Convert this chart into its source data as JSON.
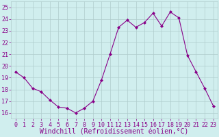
{
  "x": [
    0,
    1,
    2,
    3,
    4,
    5,
    6,
    7,
    8,
    9,
    10,
    11,
    12,
    13,
    14,
    15,
    16,
    17,
    18,
    19,
    20,
    21,
    22,
    23
  ],
  "y": [
    19.5,
    19.0,
    18.1,
    17.8,
    17.1,
    16.5,
    16.4,
    16.0,
    16.4,
    17.0,
    18.8,
    21.0,
    23.3,
    23.9,
    23.3,
    23.7,
    24.5,
    23.4,
    24.6,
    24.1,
    20.9,
    19.5,
    18.1,
    16.6
  ],
  "xlabel": "Windchill (Refroidissement éolien,°C)",
  "ylim": [
    15.5,
    25.5
  ],
  "yticks": [
    16,
    17,
    18,
    19,
    20,
    21,
    22,
    23,
    24,
    25
  ],
  "xticks": [
    0,
    1,
    2,
    3,
    4,
    5,
    6,
    7,
    8,
    9,
    10,
    11,
    12,
    13,
    14,
    15,
    16,
    17,
    18,
    19,
    20,
    21,
    22,
    23
  ],
  "line_color": "#880088",
  "marker": "D",
  "marker_size": 2,
  "bg_color": "#d0eeee",
  "grid_color": "#b0cccc",
  "font_color": "#880088",
  "axis_font_size": 6,
  "xlabel_font_size": 7
}
